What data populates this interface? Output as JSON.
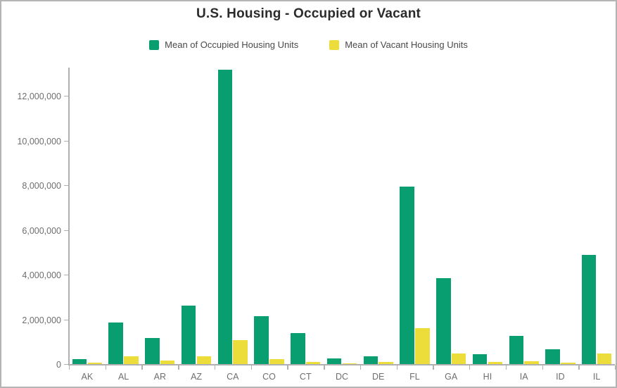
{
  "title": "U.S. Housing - Occupied or Vacant",
  "legend": {
    "items": [
      {
        "label": "Mean of Occupied Housing Units",
        "color": "#099e70"
      },
      {
        "label": "Mean of Vacant Housing Units",
        "color": "#ecdd3a"
      }
    ]
  },
  "chart_data": {
    "type": "bar",
    "title": "U.S. Housing - Occupied or Vacant",
    "categories": [
      "AK",
      "AL",
      "AR",
      "AZ",
      "CA",
      "CO",
      "CT",
      "DC",
      "DE",
      "FL",
      "GA",
      "HI",
      "IA",
      "ID",
      "IL"
    ],
    "series": [
      {
        "name": "Mean of Occupied Housing Units",
        "color": "#099e70",
        "values": [
          230000,
          1870000,
          1150000,
          2620000,
          13150000,
          2130000,
          1380000,
          260000,
          340000,
          7950000,
          3830000,
          440000,
          1260000,
          650000,
          4870000
        ]
      },
      {
        "name": "Mean of Vacant Housing Units",
        "color": "#ecdd3a",
        "values": [
          60000,
          340000,
          160000,
          350000,
          1080000,
          220000,
          110000,
          40000,
          100000,
          1600000,
          470000,
          80000,
          120000,
          70000,
          470000
        ]
      }
    ],
    "xlabel": "",
    "ylabel": "",
    "ylim": [
      0,
      13200000
    ],
    "ytick_interval": 2000000,
    "ytick_values": [
      0,
      2000000,
      4000000,
      6000000,
      8000000,
      10000000,
      12000000
    ],
    "ytick_labels": [
      "0",
      "2,000,000",
      "4,000,000",
      "6,000,000",
      "8,000,000",
      "10,000,000",
      "12,000,000"
    ],
    "grid": false,
    "legend_position": "top",
    "axis_color": "#b0b0b0",
    "tick_label_color": "#6e6e6e"
  }
}
